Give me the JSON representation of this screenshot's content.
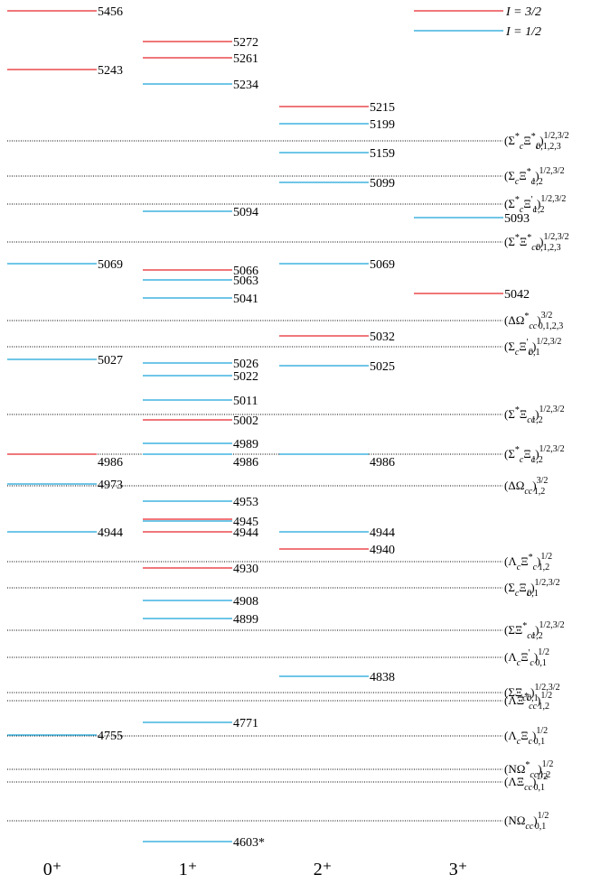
{
  "chart_data": {
    "type": "level-spectrum",
    "colors": {
      "I=3/2": "#e8262b",
      "I=1/2": "#1aa3d9",
      "threshold": "#000000"
    },
    "legend": [
      {
        "key": "I=3/2",
        "label": "I = 3/2"
      },
      {
        "key": "I=1/2",
        "label": "I = 1/2"
      }
    ],
    "columns": [
      "0⁺",
      "1⁺",
      "2⁺",
      "3⁺"
    ],
    "levels": [
      {
        "col": 0,
        "mass": 5456,
        "label": "5456",
        "iso": "I=3/2"
      },
      {
        "col": 0,
        "mass": 5243,
        "label": "5243",
        "iso": "I=3/2"
      },
      {
        "col": 0,
        "mass": 5069,
        "label": "5069",
        "iso": "I=1/2"
      },
      {
        "col": 0,
        "mass": 5027,
        "label": "5027",
        "iso": "I=1/2"
      },
      {
        "col": 0,
        "mass": 4986,
        "label": "4986",
        "iso": "I=3/2"
      },
      {
        "col": 0,
        "mass": 4973,
        "label": "4973",
        "iso": "I=1/2"
      },
      {
        "col": 0,
        "mass": 4944,
        "label": "4944",
        "iso": "I=1/2"
      },
      {
        "col": 0,
        "mass": 4755,
        "label": "4755",
        "iso": "I=1/2"
      },
      {
        "col": 1,
        "mass": 5272,
        "label": "5272",
        "iso": "I=3/2"
      },
      {
        "col": 1,
        "mass": 5261,
        "label": "5261",
        "iso": "I=3/2"
      },
      {
        "col": 1,
        "mass": 5234,
        "label": "5234",
        "iso": "I=1/2"
      },
      {
        "col": 1,
        "mass": 5094,
        "label": "5094",
        "iso": "I=1/2"
      },
      {
        "col": 1,
        "mass": 5066,
        "label": "5066",
        "iso": "I=3/2"
      },
      {
        "col": 1,
        "mass": 5063,
        "label": "5063",
        "iso": "I=1/2"
      },
      {
        "col": 1,
        "mass": 5041,
        "label": "5041",
        "iso": "I=1/2"
      },
      {
        "col": 1,
        "mass": 5026,
        "label": "5026",
        "iso": "I=1/2"
      },
      {
        "col": 1,
        "mass": 5022,
        "label": "5022",
        "iso": "I=1/2"
      },
      {
        "col": 1,
        "mass": 5011,
        "label": "5011",
        "iso": "I=1/2"
      },
      {
        "col": 1,
        "mass": 5002,
        "label": "5002",
        "iso": "I=3/2"
      },
      {
        "col": 1,
        "mass": 4989,
        "label": "4989",
        "iso": "I=1/2"
      },
      {
        "col": 1,
        "mass": 4986,
        "label": "4986",
        "iso": "I=1/2"
      },
      {
        "col": 1,
        "mass": 4953,
        "label": "4953",
        "iso": "I=1/2"
      },
      {
        "col": 1,
        "mass": 4945,
        "label": "4945",
        "iso": "I=1/2"
      },
      {
        "col": 1,
        "mass": 4946,
        "label": "",
        "iso": "I=3/2"
      },
      {
        "col": 1,
        "mass": 4944,
        "label": "4944",
        "iso": "I=3/2"
      },
      {
        "col": 1,
        "mass": 4930,
        "label": "4930",
        "iso": "I=3/2"
      },
      {
        "col": 1,
        "mass": 4908,
        "label": "4908",
        "iso": "I=1/2"
      },
      {
        "col": 1,
        "mass": 4899,
        "label": "4899",
        "iso": "I=1/2"
      },
      {
        "col": 1,
        "mass": 4771,
        "label": "4771",
        "iso": "I=1/2"
      },
      {
        "col": 1,
        "mass": 4603,
        "label": "4603*",
        "iso": "I=1/2"
      },
      {
        "col": 2,
        "mass": 5215,
        "label": "5215",
        "iso": "I=3/2"
      },
      {
        "col": 2,
        "mass": 5199,
        "label": "5199",
        "iso": "I=1/2"
      },
      {
        "col": 2,
        "mass": 5159,
        "label": "5159",
        "iso": "I=1/2"
      },
      {
        "col": 2,
        "mass": 5099,
        "label": "5099",
        "iso": "I=1/2"
      },
      {
        "col": 2,
        "mass": 5069,
        "label": "5069",
        "iso": "I=1/2"
      },
      {
        "col": 2,
        "mass": 5032,
        "label": "5032",
        "iso": "I=3/2"
      },
      {
        "col": 2,
        "mass": 5025,
        "label": "5025",
        "iso": "I=1/2"
      },
      {
        "col": 2,
        "mass": 4986,
        "label": "4986",
        "iso": "I=1/2"
      },
      {
        "col": 2,
        "mass": 4944,
        "label": "4944",
        "iso": "I=1/2"
      },
      {
        "col": 2,
        "mass": 4940,
        "label": "4940",
        "iso": "I=3/2"
      },
      {
        "col": 2,
        "mass": 4838,
        "label": "4838",
        "iso": "I=1/2"
      },
      {
        "col": 3,
        "mass": 5093,
        "label": "5093",
        "iso": "I=1/2"
      },
      {
        "col": 3,
        "mass": 5042,
        "label": "5042",
        "iso": "I=3/2"
      }
    ],
    "thresholds": [
      {
        "mass": 5180,
        "main": "(Σ",
        "msup": "*",
        "msub": "c",
        "main2": "Ξ",
        "m2sup": "*",
        "m2sub": "c",
        "close": ")",
        "sup": "1/2,3/2",
        "sub": "0,1,2,3"
      },
      {
        "mass": 5119,
        "main": "(Σ",
        "msup": "",
        "msub": "c",
        "main2": "Ξ",
        "m2sup": "*",
        "m2sub": "c",
        "close": ")",
        "sup": "1/2,3/2",
        "sub": "1,2"
      },
      {
        "mass": 5104,
        "main": "(Σ",
        "msup": "*",
        "msub": "c",
        "main2": "Ξ",
        "m2sup": "'",
        "m2sub": "c",
        "close": ")",
        "sup": "1/2,3/2",
        "sub": "1,2"
      },
      {
        "mass": 5079,
        "main": "(Σ",
        "msup": "*",
        "msub": "",
        "main2": "Ξ",
        "m2sup": "*",
        "m2sub": "cc",
        "close": ")",
        "sup": "1/2,3/2",
        "sub": "0,1,2,3"
      },
      {
        "mass": 5036,
        "main": "(ΔΩ",
        "msup": "*",
        "msub": "cc",
        "main2": "",
        "m2sup": "",
        "m2sub": "",
        "close": ")",
        "sup": "3/2",
        "sub": "0,1,2,3"
      },
      {
        "mass": 5020,
        "main": "(Σ",
        "msup": "",
        "msub": "c",
        "main2": "Ξ",
        "m2sup": "'",
        "m2sub": "c",
        "close": ")",
        "sup": "1/2,3/2",
        "sub": "0,1"
      },
      {
        "mass": 4998,
        "main": "(Σ",
        "msup": "*",
        "msub": "",
        "main2": "Ξ",
        "m2sup": "",
        "m2sub": "cc",
        "close": ")",
        "sup": "1/2,3/2",
        "sub": "1,2"
      },
      {
        "mass": 4981,
        "main": "(Σ",
        "msup": "*",
        "msub": "c",
        "main2": "Ξ",
        "m2sup": "",
        "m2sub": "c",
        "close": ")",
        "sup": "1/2,3/2",
        "sub": "1,2"
      },
      {
        "mass": 4961,
        "main": "(ΔΩ",
        "msup": "",
        "msub": "cc",
        "main2": "",
        "m2sup": "",
        "m2sub": "",
        "close": ")",
        "sup": "3/2",
        "sub": "1,2"
      },
      {
        "mass": 4933,
        "main": "(Λ",
        "msup": "",
        "msub": "c",
        "main2": "Ξ",
        "m2sup": "*",
        "m2sub": "c",
        "close": ")",
        "sup": "1/2",
        "sub": "1,2"
      },
      {
        "mass": 4918,
        "main": "(Σ",
        "msup": "",
        "msub": "c",
        "main2": "Ξ",
        "m2sup": "",
        "m2sub": "c",
        "close": ")",
        "sup": "1/2,3/2",
        "sub": "0,1"
      },
      {
        "mass": 4890,
        "main": "(Σ",
        "msup": "",
        "msub": "",
        "main2": "Ξ",
        "m2sup": "*",
        "m2sub": "cc",
        "close": ")",
        "sup": "1/2,3/2",
        "sub": "1,2"
      },
      {
        "mass": 4865,
        "main": "(Λ",
        "msup": "",
        "msub": "c",
        "main2": "Ξ",
        "m2sup": "'",
        "m2sub": "c",
        "close": ")",
        "sup": "1/2",
        "sub": "0,1"
      },
      {
        "mass": 4822,
        "main": "(Σ",
        "msup": "",
        "msub": "",
        "main2": "Ξ",
        "m2sup": "",
        "m2sub": "cc",
        "close": ")",
        "sup": "1/2,3/2",
        "sub": "0,1"
      },
      {
        "mass": 4815,
        "main": "(Λ",
        "msup": "",
        "msub": "",
        "main2": "Ξ",
        "m2sup": "*",
        "m2sub": "cc",
        "close": ")",
        "sup": "1/2",
        "sub": "1,2"
      },
      {
        "mass": 4752,
        "main": "(Λ",
        "msup": "",
        "msub": "c",
        "main2": "Ξ",
        "m2sup": "",
        "m2sub": "c",
        "close": ")",
        "sup": "1/2",
        "sub": "0,1"
      },
      {
        "mass": 4720,
        "main": "(NΩ",
        "msup": "*",
        "msub": "cc",
        "main2": "",
        "m2sup": "",
        "m2sub": "",
        "close": ")",
        "sup": "1/2",
        "sub": "1,2"
      },
      {
        "mass": 4709,
        "main": "(ΛΞ",
        "msup": "",
        "msub": "cc",
        "main2": "",
        "m2sup": "",
        "m2sub": "",
        "close": ")",
        "sup": "1/2",
        "sub": "0,1"
      },
      {
        "mass": 4650,
        "main": "(NΩ",
        "msup": "",
        "msub": "cc",
        "main2": "",
        "m2sup": "",
        "m2sub": "",
        "close": ")",
        "sup": "1/2",
        "sub": "0,1"
      }
    ]
  }
}
